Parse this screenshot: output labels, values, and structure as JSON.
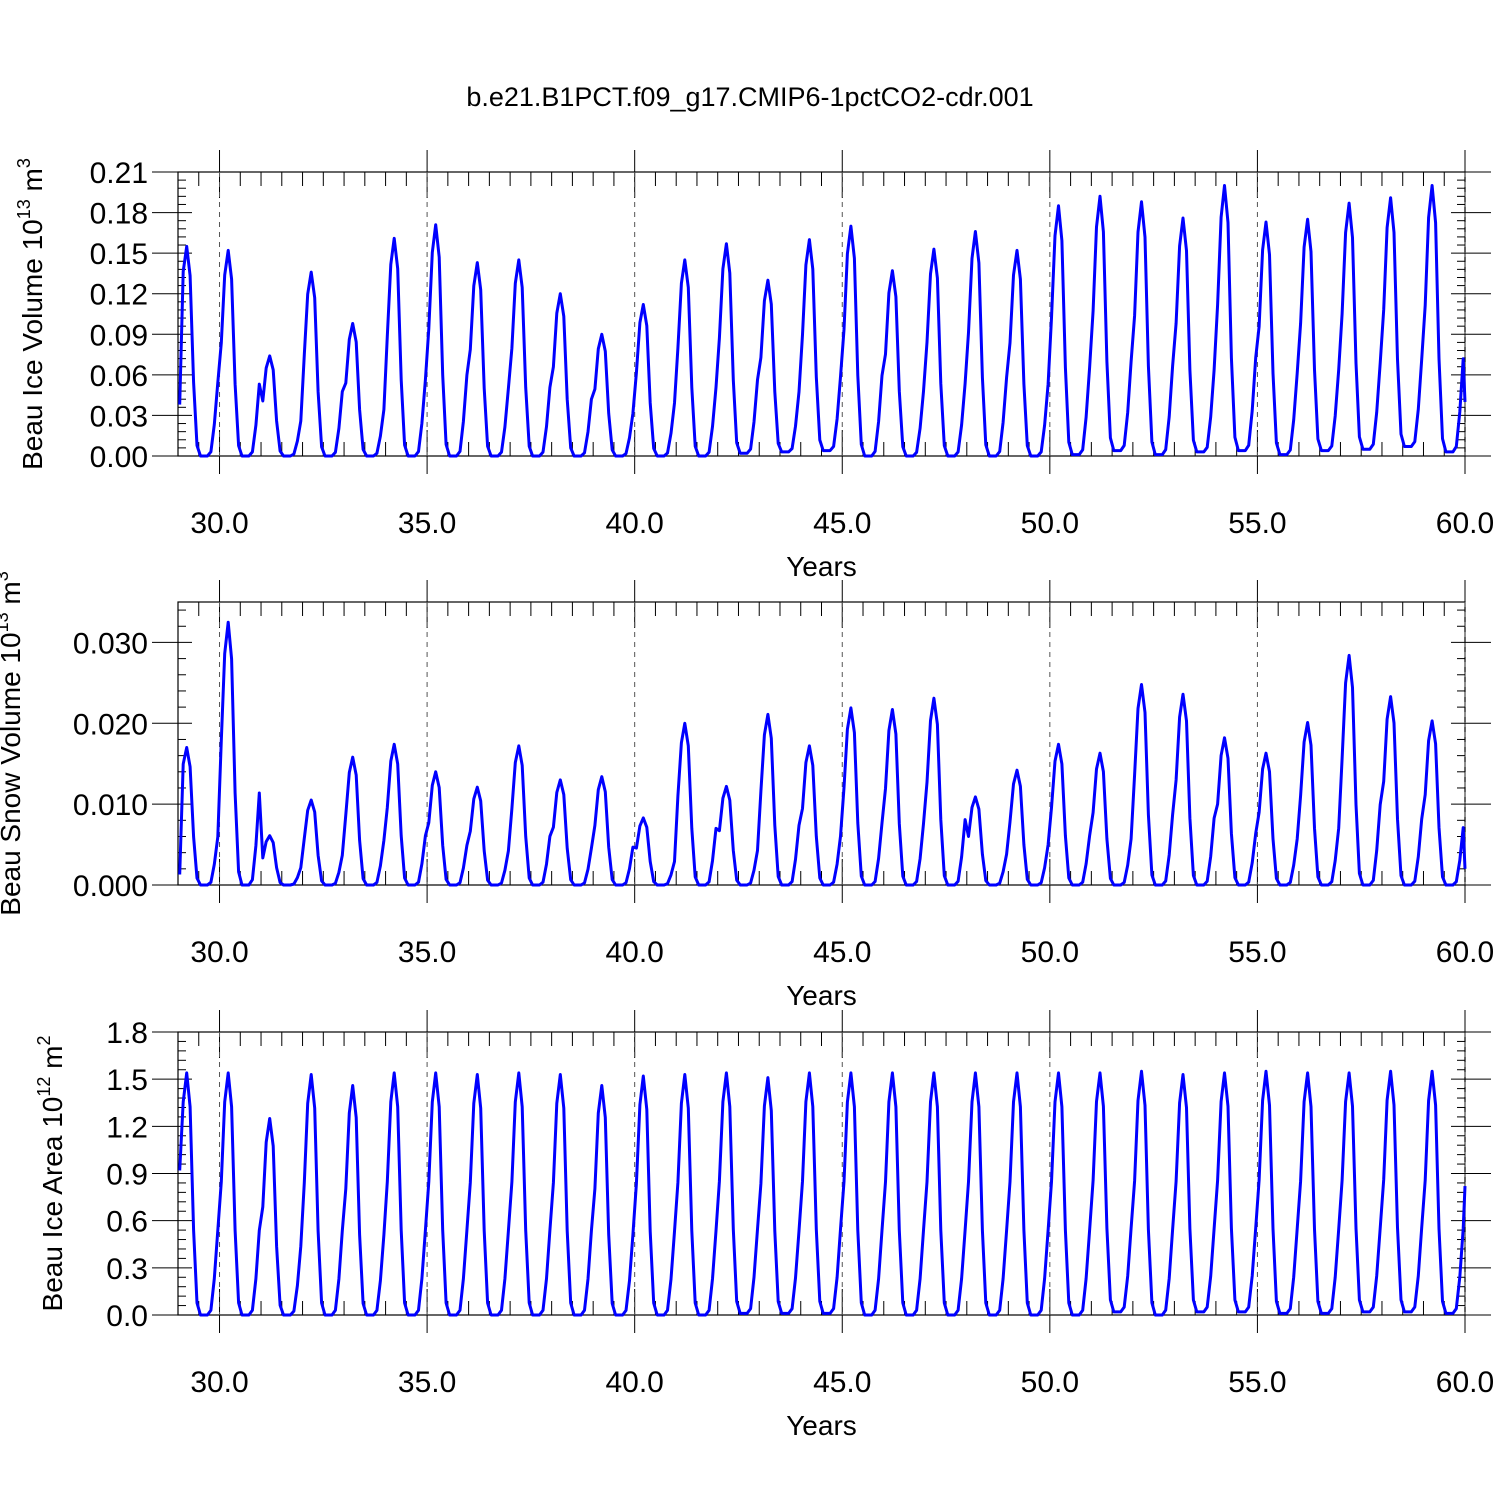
{
  "title": "b.e21.B1PCT.f09_g17.CMIP6-1pctCO2-cdr.001",
  "line_color": "#0000ff",
  "grid_color": "#555555",
  "chart_data": [
    {
      "type": "line",
      "title": "b.e21.B1PCT.f09_g17.CMIP6-1pctCO2-cdr.001",
      "xlabel": "Years",
      "ylabel": "Beau Ice Volume",
      "yunit_base": "10",
      "yunit_exp": "13",
      "yunit_tail": "m",
      "yunit_tail_exp": "3",
      "xlim": [
        29.0,
        60.0
      ],
      "ylim": [
        0.0,
        0.21
      ],
      "xticks": [
        "30.0",
        "35.0",
        "40.0",
        "45.0",
        "50.0",
        "55.0",
        "60.0"
      ],
      "yticks": [
        "0.00",
        "0.03",
        "0.06",
        "0.09",
        "0.12",
        "0.15",
        "0.18",
        "0.21"
      ],
      "grid": "vertical dashed at major x ticks",
      "series": [
        {
          "x0": 29.042,
          "dx": 0.08333,
          "peaks": [
            0.155,
            0.152,
            0.074,
            0.136,
            0.098,
            0.161,
            0.171,
            0.143,
            0.145,
            0.12,
            0.09,
            0.112,
            0.145,
            0.157,
            0.13,
            0.16,
            0.17,
            0.137,
            0.153,
            0.166,
            0.152,
            0.185,
            0.192,
            0.188,
            0.176,
            0.2,
            0.173,
            0.175,
            0.187,
            0.191,
            0.2
          ],
          "mins": [
            0.0,
            0.0,
            0.0,
            0.0,
            0.0,
            0.0,
            0.0,
            0.0,
            0.0,
            0.0,
            0.0,
            0.0,
            0.0,
            0.002,
            0.003,
            0.004,
            0.0,
            0.0,
            0.0,
            0.0,
            0.0,
            0.001,
            0.004,
            0.001,
            0.003,
            0.004,
            0.001,
            0.004,
            0.005,
            0.007,
            0.003
          ],
          "first": 0.038,
          "last": 0.04
        }
      ]
    },
    {
      "type": "line",
      "xlabel": "Years",
      "ylabel": "Beau Snow Volume",
      "yunit_base": "10",
      "yunit_exp": "13",
      "yunit_tail": "m",
      "yunit_tail_exp": "3",
      "xlim": [
        29.0,
        60.0
      ],
      "ylim": [
        0.0,
        0.035
      ],
      "xticks": [
        "30.0",
        "35.0",
        "40.0",
        "45.0",
        "50.0",
        "55.0",
        "60.0"
      ],
      "yticks": [
        "0.000",
        "0.010",
        "0.020",
        "0.030"
      ],
      "grid": "vertical dashed at major x ticks",
      "series": [
        {
          "x0": 29.042,
          "dx": 0.08333,
          "peaks": [
            0.017,
            0.0325,
            0.0061,
            0.0105,
            0.0158,
            0.0174,
            0.014,
            0.0121,
            0.0172,
            0.013,
            0.0134,
            0.0083,
            0.02,
            0.0122,
            0.0211,
            0.0172,
            0.0219,
            0.0217,
            0.0231,
            0.0109,
            0.0142,
            0.0174,
            0.0163,
            0.0248,
            0.0236,
            0.0182,
            0.0163,
            0.0201,
            0.0284,
            0.0233,
            0.0203
          ],
          "mins": [
            0.0,
            0.0,
            0.0,
            0.0,
            0.0,
            0.0,
            0.0,
            0.0,
            0.0,
            0.0,
            0.0,
            0.0,
            0.0,
            0.0,
            0.0,
            0.0,
            0.0,
            0.0,
            0.0,
            0.0,
            0.0,
            0.0,
            0.0,
            0.0,
            0.0,
            0.0,
            0.0,
            0.0,
            0.0,
            0.0,
            0.0
          ],
          "first": 0.0013,
          "last": 0.002
        }
      ]
    },
    {
      "type": "line",
      "xlabel": "Years",
      "ylabel": "Beau Ice Area",
      "yunit_base": "10",
      "yunit_exp": "12",
      "yunit_tail": "m",
      "yunit_tail_exp": "2",
      "xlim": [
        29.0,
        60.0
      ],
      "ylim": [
        0.0,
        1.8
      ],
      "xticks": [
        "30.0",
        "35.0",
        "40.0",
        "45.0",
        "50.0",
        "55.0",
        "60.0"
      ],
      "yticks": [
        "0.0",
        "0.3",
        "0.6",
        "0.9",
        "1.2",
        "1.5",
        "1.8"
      ],
      "grid": "vertical dashed at major x ticks",
      "series": [
        {
          "x0": 29.042,
          "dx": 0.08333,
          "peaks": [
            1.54,
            1.54,
            1.25,
            1.53,
            1.46,
            1.54,
            1.54,
            1.53,
            1.54,
            1.53,
            1.46,
            1.52,
            1.53,
            1.54,
            1.51,
            1.54,
            1.54,
            1.54,
            1.54,
            1.54,
            1.54,
            1.54,
            1.54,
            1.55,
            1.53,
            1.54,
            1.55,
            1.54,
            1.54,
            1.55,
            1.55
          ],
          "mins": [
            0.0,
            0.0,
            0.0,
            0.0,
            0.0,
            0.0,
            0.0,
            0.0,
            0.0,
            0.0,
            0.0,
            0.0,
            0.0,
            0.01,
            0.01,
            0.01,
            0.0,
            0.0,
            0.0,
            0.0,
            0.0,
            0.0,
            0.02,
            0.0,
            0.02,
            0.02,
            0.01,
            0.01,
            0.02,
            0.02,
            0.01
          ],
          "first": 0.92,
          "last": 0.82
        }
      ]
    }
  ]
}
